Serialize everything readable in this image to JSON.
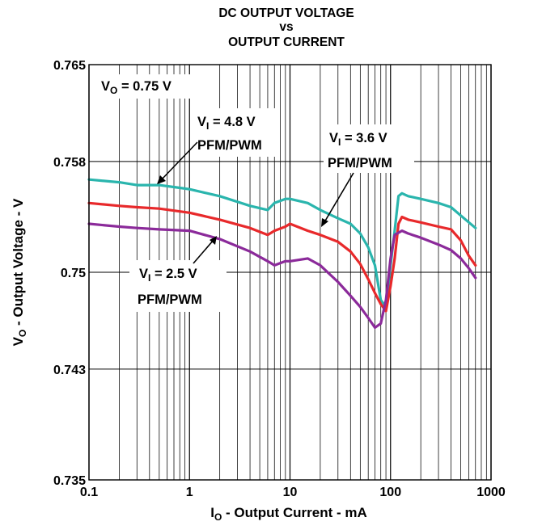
{
  "chart_data": {
    "type": "line",
    "title": [
      "DC OUTPUT VOLTAGE",
      "vs",
      "OUTPUT CURRENT"
    ],
    "xlabel": {
      "main": "I",
      "sub": "O",
      "rest": " - Output Current - mA"
    },
    "ylabel": {
      "main": "V",
      "sub": "O",
      "rest": " - Output Voltage - V"
    },
    "x_scale": "log",
    "xlim": [
      0.1,
      1000
    ],
    "ylim": [
      0.735,
      0.765
    ],
    "x_ticks": [
      0.1,
      1,
      10,
      100,
      1000
    ],
    "x_tick_labels": [
      "0.1",
      "1",
      "10",
      "100",
      "1000"
    ],
    "y_ticks": [
      0.735,
      0.743,
      0.75,
      0.758,
      0.765
    ],
    "y_tick_labels": [
      "0.735",
      "0.743",
      "0.75",
      "0.758",
      "0.765"
    ],
    "grid": true,
    "series": [
      {
        "name": "VI = 4.8 V PFM/PWM",
        "color": "#2ab5ad",
        "points": [
          [
            0.1,
            0.7567
          ],
          [
            0.2,
            0.7565
          ],
          [
            0.3,
            0.7563
          ],
          [
            0.5,
            0.7563
          ],
          [
            0.8,
            0.7561
          ],
          [
            1,
            0.756
          ],
          [
            2,
            0.7555
          ],
          [
            4,
            0.7548
          ],
          [
            6,
            0.7545
          ],
          [
            7,
            0.755
          ],
          [
            9,
            0.7553
          ],
          [
            10,
            0.7553
          ],
          [
            15,
            0.755
          ],
          [
            20,
            0.7545
          ],
          [
            30,
            0.7539
          ],
          [
            40,
            0.7535
          ],
          [
            50,
            0.7528
          ],
          [
            60,
            0.7518
          ],
          [
            70,
            0.7505
          ],
          [
            80,
            0.748
          ],
          [
            90,
            0.7475
          ],
          [
            100,
            0.7505
          ],
          [
            110,
            0.753
          ],
          [
            120,
            0.7555
          ],
          [
            130,
            0.7557
          ],
          [
            150,
            0.7555
          ],
          [
            200,
            0.7553
          ],
          [
            300,
            0.755
          ],
          [
            400,
            0.7547
          ],
          [
            500,
            0.7541
          ],
          [
            700,
            0.7532
          ]
        ]
      },
      {
        "name": "VI = 3.6 V PFM/PWM",
        "color": "#e8292b",
        "points": [
          [
            0.1,
            0.755
          ],
          [
            0.2,
            0.7548
          ],
          [
            0.3,
            0.7547
          ],
          [
            0.5,
            0.7546
          ],
          [
            1,
            0.7543
          ],
          [
            2,
            0.7538
          ],
          [
            4,
            0.7532
          ],
          [
            6,
            0.7527
          ],
          [
            7,
            0.753
          ],
          [
            9,
            0.7533
          ],
          [
            10,
            0.7535
          ],
          [
            15,
            0.753
          ],
          [
            20,
            0.7527
          ],
          [
            30,
            0.7522
          ],
          [
            40,
            0.7515
          ],
          [
            50,
            0.7506
          ],
          [
            60,
            0.7495
          ],
          [
            70,
            0.7485
          ],
          [
            80,
            0.7477
          ],
          [
            90,
            0.7472
          ],
          [
            100,
            0.749
          ],
          [
            110,
            0.751
          ],
          [
            120,
            0.7535
          ],
          [
            130,
            0.754
          ],
          [
            150,
            0.7538
          ],
          [
            200,
            0.7536
          ],
          [
            300,
            0.7533
          ],
          [
            400,
            0.7531
          ],
          [
            500,
            0.7523
          ],
          [
            600,
            0.7512
          ],
          [
            700,
            0.7505
          ]
        ]
      },
      {
        "name": "VI = 2.5 V PFM/PWM",
        "color": "#8b2a9a",
        "points": [
          [
            0.1,
            0.7535
          ],
          [
            0.2,
            0.7533
          ],
          [
            0.3,
            0.7532
          ],
          [
            0.5,
            0.7531
          ],
          [
            1,
            0.753
          ],
          [
            2,
            0.7524
          ],
          [
            4,
            0.7515
          ],
          [
            6,
            0.7508
          ],
          [
            7,
            0.7505
          ],
          [
            9,
            0.7508
          ],
          [
            10,
            0.7508
          ],
          [
            15,
            0.751
          ],
          [
            20,
            0.7505
          ],
          [
            30,
            0.7493
          ],
          [
            40,
            0.7483
          ],
          [
            50,
            0.7475
          ],
          [
            60,
            0.7467
          ],
          [
            70,
            0.746
          ],
          [
            80,
            0.7463
          ],
          [
            90,
            0.748
          ],
          [
            100,
            0.751
          ],
          [
            110,
            0.7527
          ],
          [
            130,
            0.753
          ],
          [
            150,
            0.7528
          ],
          [
            200,
            0.7525
          ],
          [
            300,
            0.752
          ],
          [
            400,
            0.7516
          ],
          [
            500,
            0.751
          ],
          [
            600,
            0.7503
          ],
          [
            700,
            0.7496
          ]
        ]
      }
    ],
    "annotations": [
      {
        "label_main": "V",
        "label_sub": "O",
        "label_rest": " = 0.75 V",
        "anchor": "top-left"
      },
      {
        "label_main": "V",
        "label_sub": "I",
        "label_rest": " = 4.8 V",
        "mode": "PFM/PWM",
        "series_index": 0,
        "arrow_to": [
          0.45,
          0.7563
        ]
      },
      {
        "label_main": "V",
        "label_sub": "I",
        "label_rest": " = 3.6 V",
        "mode": "PFM/PWM",
        "series_index": 1,
        "arrow_to": [
          25,
          0.7527
        ]
      },
      {
        "label_main": "V",
        "label_sub": "I",
        "label_rest": " = 2.5 V",
        "mode": "PFM/PWM",
        "series_index": 2,
        "arrow_to": [
          1.7,
          0.7527
        ]
      }
    ]
  }
}
